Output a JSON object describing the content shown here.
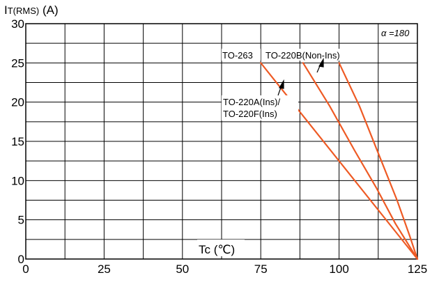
{
  "chart_data": {
    "type": "line",
    "ylabel_main": "I",
    "ylabel_sub": "T(RMS)",
    "ylabel_unit": " (A)",
    "xlabel": "Tc (℃)",
    "xlim": [
      0,
      125
    ],
    "ylim": [
      0,
      30
    ],
    "x_ticks": [
      0,
      25,
      50,
      75,
      100,
      125
    ],
    "y_ticks": [
      0,
      5,
      10,
      15,
      20,
      25,
      30
    ],
    "grid": true,
    "line_color": "#ee5a24",
    "legend_note": "α =180",
    "series": [
      {
        "name": "TO-220A(Ins)/ TO-220F(Ins)",
        "x": [
          75,
          125
        ],
        "y": [
          25,
          0
        ]
      },
      {
        "name": "TO-263",
        "x": [
          88.5,
          97,
          105,
          112,
          118,
          125
        ],
        "y": [
          25,
          19.5,
          13.8,
          9,
          4.5,
          0
        ]
      },
      {
        "name": "TO-220B(Non-Ins)",
        "x": [
          100,
          106.5,
          113,
          118.5,
          122.5,
          125
        ],
        "y": [
          25,
          19.5,
          13,
          7.5,
          3,
          0
        ]
      }
    ],
    "annotations": {
      "label_to263": "TO-263",
      "label_to220b": "TO-220B(Non-Ins)",
      "label_to220a_line1": "TO-220A(Ins)/",
      "label_to220a_line2": "TO-220F(Ins)"
    }
  }
}
